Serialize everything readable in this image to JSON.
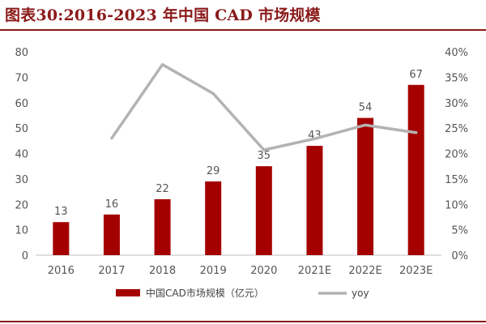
{
  "header": {
    "title": "图表30:2016-2023 年中国 CAD 市场规模"
  },
  "chart_data": {
    "type": "bar",
    "categories": [
      "2016",
      "2017",
      "2018",
      "2019",
      "2020",
      "2021E",
      "2022E",
      "2023E"
    ],
    "series": [
      {
        "name": "中国CAD市场规模（亿元）",
        "kind": "bar",
        "axis": "left",
        "color": "#a50000",
        "values": [
          13,
          16,
          22,
          29,
          35,
          43,
          54,
          67
        ],
        "labels": [
          "13",
          "16",
          "22",
          "29",
          "35",
          "43",
          "54",
          "67"
        ]
      },
      {
        "name": "yoy",
        "kind": "line",
        "axis": "right",
        "color": "#b3b3b3",
        "values": [
          null,
          0.23,
          0.375,
          0.318,
          0.207,
          0.229,
          0.256,
          0.241
        ]
      }
    ],
    "ylim": [
      0,
      80
    ],
    "y_ticks": [
      "0",
      "10",
      "20",
      "30",
      "40",
      "50",
      "60",
      "70",
      "80"
    ],
    "y2lim": [
      0,
      0.4
    ],
    "y2_ticks": [
      "0%",
      "5%",
      "10%",
      "15%",
      "20%",
      "25%",
      "30%",
      "35%",
      "40%"
    ],
    "grid": false,
    "legend_position": "bottom"
  }
}
